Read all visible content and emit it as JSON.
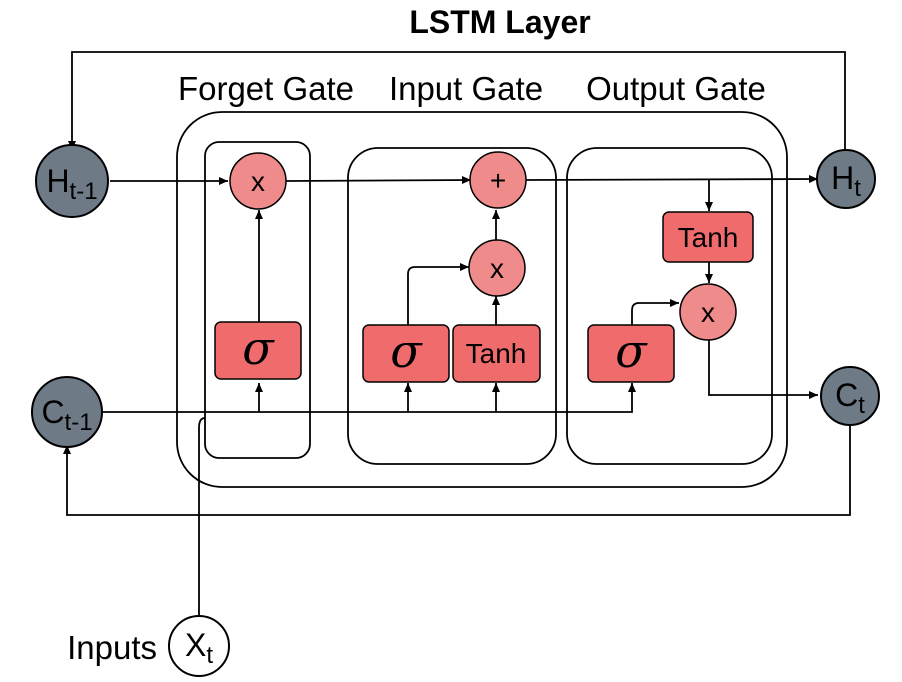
{
  "title": "LSTM Layer",
  "gates": {
    "forget": "Forget Gate",
    "input": "Input Gate",
    "output": "Output Gate"
  },
  "nodes": {
    "h_prev": {
      "main": "H",
      "sub": "t-1"
    },
    "h_next": {
      "main": "H",
      "sub": "t"
    },
    "c_prev": {
      "main": "C",
      "sub": "t-1"
    },
    "c_next": {
      "main": "C",
      "sub": "t"
    },
    "x_in": {
      "main": "X",
      "sub": "t"
    }
  },
  "inputs_label": "Inputs",
  "ops": {
    "forget_multiply": "x",
    "input_add": "+",
    "input_multiply": "x",
    "output_multiply": "x"
  },
  "activations": {
    "forget_sigmoid": "σ",
    "input_sigmoid": "σ",
    "input_tanh": "Tanh",
    "output_sigmoid": "σ",
    "output_tanh": "Tanh"
  },
  "colors": {
    "state_node": "#6e7b87",
    "op_node": "#f08b8b",
    "activation_box": "#f06c6c"
  }
}
